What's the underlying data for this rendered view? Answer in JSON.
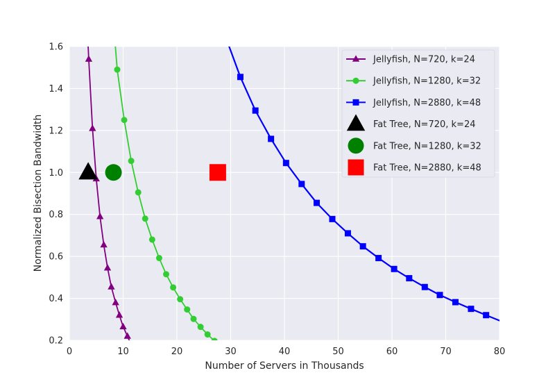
{
  "chart_data": {
    "type": "line",
    "title": "",
    "xlabel": "Number of Servers in Thousands",
    "ylabel": "Normalized Bisection Bandwidth",
    "xlim": [
      0,
      80
    ],
    "ylim": [
      0.2,
      1.6
    ],
    "xticks": [
      0,
      10,
      20,
      30,
      40,
      50,
      60,
      70,
      80
    ],
    "yticks": [
      0.2,
      0.4,
      0.6,
      0.8,
      1.0,
      1.2,
      1.4,
      1.6
    ],
    "grid": true,
    "legend_position": "top-right",
    "style": {
      "background": "#eaeaf2",
      "grid_color": "#ffffff"
    },
    "series": [
      {
        "name": "Jellyfish, N=720, k=24",
        "color": "#800080",
        "marker": "triangle",
        "line_points": [
          [
            3.4,
            1.65
          ],
          [
            3.6,
            1.54
          ],
          [
            4.3,
            1.21
          ],
          [
            5.0,
            0.97
          ],
          [
            5.7,
            0.79
          ],
          [
            6.4,
            0.655
          ],
          [
            7.1,
            0.545
          ],
          [
            7.8,
            0.455
          ],
          [
            8.6,
            0.38
          ],
          [
            9.3,
            0.32
          ],
          [
            10.0,
            0.265
          ],
          [
            10.8,
            0.22
          ],
          [
            11.3,
            0.19
          ]
        ],
        "x": [
          3.6,
          4.3,
          5.0,
          5.7,
          6.4,
          7.1,
          7.8,
          8.6,
          9.3,
          10.0,
          10.8
        ],
        "y": [
          1.54,
          1.21,
          0.97,
          0.79,
          0.655,
          0.545,
          0.455,
          0.38,
          0.32,
          0.265,
          0.22
        ]
      },
      {
        "name": "Jellyfish, N=1280, k=32",
        "color": "#32cd32",
        "marker": "circle",
        "line_points": [
          [
            8.4,
            1.65
          ],
          [
            8.9,
            1.49
          ],
          [
            10.2,
            1.25
          ],
          [
            11.5,
            1.055
          ],
          [
            12.8,
            0.905
          ],
          [
            14.1,
            0.78
          ],
          [
            15.4,
            0.68
          ],
          [
            16.7,
            0.592
          ],
          [
            18.0,
            0.515
          ],
          [
            19.3,
            0.452
          ],
          [
            20.6,
            0.396
          ],
          [
            21.9,
            0.347
          ],
          [
            23.1,
            0.302
          ],
          [
            24.4,
            0.264
          ],
          [
            25.7,
            0.228
          ],
          [
            27.0,
            0.197
          ],
          [
            27.7,
            0.18
          ]
        ],
        "x": [
          8.9,
          10.2,
          11.5,
          12.8,
          14.1,
          15.4,
          16.7,
          18.0,
          19.3,
          20.6,
          21.9,
          23.1,
          24.4,
          25.7,
          27.0
        ],
        "y": [
          1.49,
          1.25,
          1.055,
          0.905,
          0.78,
          0.68,
          0.592,
          0.515,
          0.452,
          0.396,
          0.347,
          0.302,
          0.264,
          0.228,
          0.197
        ]
      },
      {
        "name": "Jellyfish, N=2880, k=48",
        "color": "#0000ff",
        "marker": "square",
        "line_points": [
          [
            29.0,
            1.65
          ],
          [
            31.8,
            1.455
          ],
          [
            34.6,
            1.295
          ],
          [
            37.5,
            1.16
          ],
          [
            40.3,
            1.045
          ],
          [
            43.2,
            0.945
          ],
          [
            46.0,
            0.855
          ],
          [
            48.9,
            0.778
          ],
          [
            51.8,
            0.71
          ],
          [
            54.6,
            0.648
          ],
          [
            57.5,
            0.592
          ],
          [
            60.4,
            0.54
          ],
          [
            63.2,
            0.496
          ],
          [
            66.1,
            0.454
          ],
          [
            68.9,
            0.416
          ],
          [
            71.8,
            0.382
          ],
          [
            74.7,
            0.35
          ],
          [
            77.5,
            0.32
          ],
          [
            80.4,
            0.29
          ]
        ],
        "x": [
          31.8,
          34.6,
          37.5,
          40.3,
          43.2,
          46.0,
          48.9,
          51.8,
          54.6,
          57.5,
          60.4,
          63.2,
          66.1,
          68.9,
          71.8,
          74.7,
          77.5
        ],
        "y": [
          1.455,
          1.295,
          1.16,
          1.045,
          0.945,
          0.855,
          0.778,
          0.71,
          0.648,
          0.592,
          0.54,
          0.496,
          0.454,
          0.416,
          0.382,
          0.35,
          0.32
        ]
      },
      {
        "name": "Fat Tree, N=720, k=24",
        "color": "#000000",
        "marker": "triangle",
        "marker_style": "large",
        "x": [
          3.5
        ],
        "y": [
          1.0
        ]
      },
      {
        "name": "Fat Tree, N=1280, k=32",
        "color": "#008000",
        "marker": "circle",
        "marker_style": "large",
        "x": [
          8.2
        ],
        "y": [
          1.0
        ]
      },
      {
        "name": "Fat Tree, N=2880, k=48",
        "color": "#ff0000",
        "marker": "square",
        "marker_style": "large",
        "x": [
          27.6
        ],
        "y": [
          1.0
        ]
      }
    ]
  }
}
